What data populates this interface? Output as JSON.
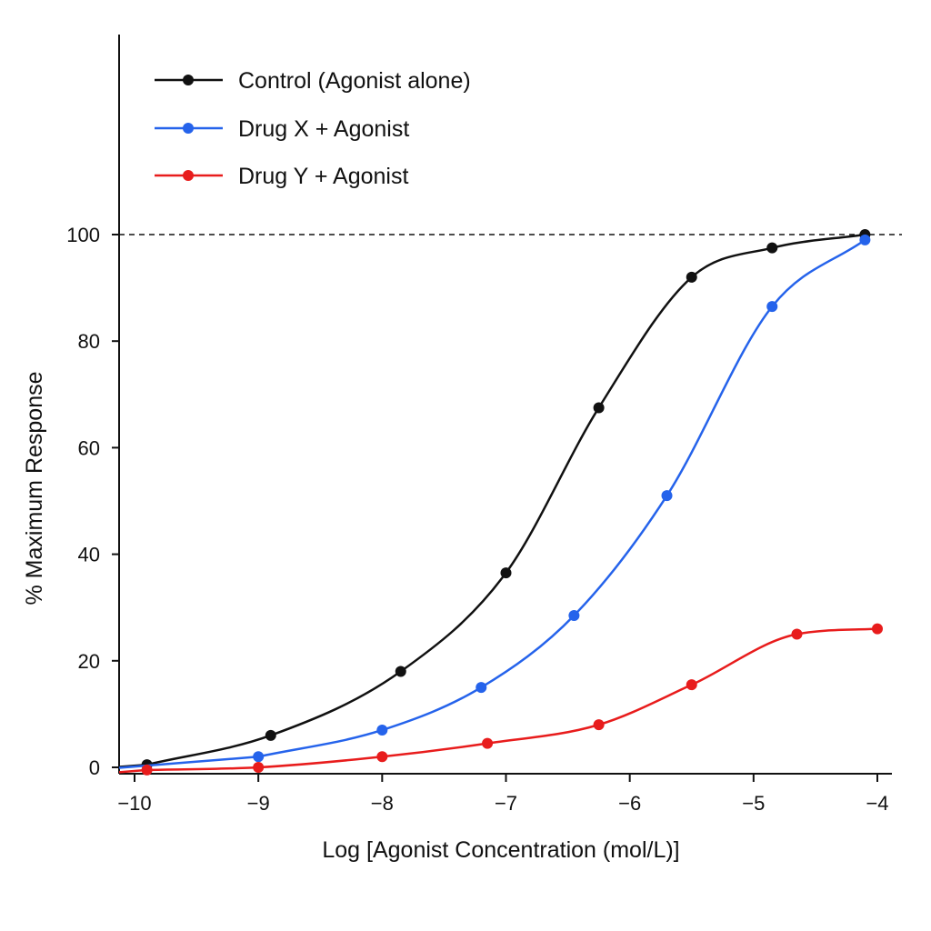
{
  "chart_data": {
    "type": "line",
    "title": "",
    "xlabel": "Log [Agonist Concentration (mol/L)]",
    "ylabel": "% Maximum Response",
    "xlim": [
      -10.1,
      -3.9
    ],
    "ylim": [
      -1,
      100
    ],
    "x_ticks": [
      -10,
      -9,
      -8,
      -7,
      -6,
      -5,
      -4
    ],
    "x_tick_labels": [
      "−10",
      "−9",
      "−8",
      "−7",
      "−6",
      "−5",
      "−4"
    ],
    "y_ticks": [
      0,
      20,
      40,
      60,
      80,
      100
    ],
    "y_tick_labels": [
      "0",
      "20",
      "40",
      "60",
      "80",
      "100"
    ],
    "reference_line": {
      "y": 100,
      "style": "dashed"
    },
    "grid": false,
    "legend_position": "top-left",
    "series": [
      {
        "name": "Control (Agonist alone)",
        "color": "#111111",
        "x": [
          -9.9,
          -8.9,
          -7.85,
          -7.0,
          -6.25,
          -5.5,
          -4.85,
          -4.1
        ],
        "y": [
          0.5,
          6,
          18,
          36.5,
          67.5,
          92,
          97.5,
          100
        ]
      },
      {
        "name": "Drug X + Agonist",
        "color": "#2563eb",
        "x": [
          -9.0,
          -8.0,
          -7.2,
          -6.45,
          -5.7,
          -4.85,
          -4.1
        ],
        "y": [
          2,
          7,
          15,
          28.5,
          51,
          86.5,
          99
        ]
      },
      {
        "name": "Drug Y + Agonist",
        "color": "#e81c1c",
        "x": [
          -9.9,
          -9.0,
          -8.0,
          -7.15,
          -6.25,
          -5.5,
          -4.65,
          -4.0
        ],
        "y": [
          -0.5,
          0,
          2,
          4.5,
          8,
          15.5,
          25,
          26
        ]
      }
    ]
  }
}
